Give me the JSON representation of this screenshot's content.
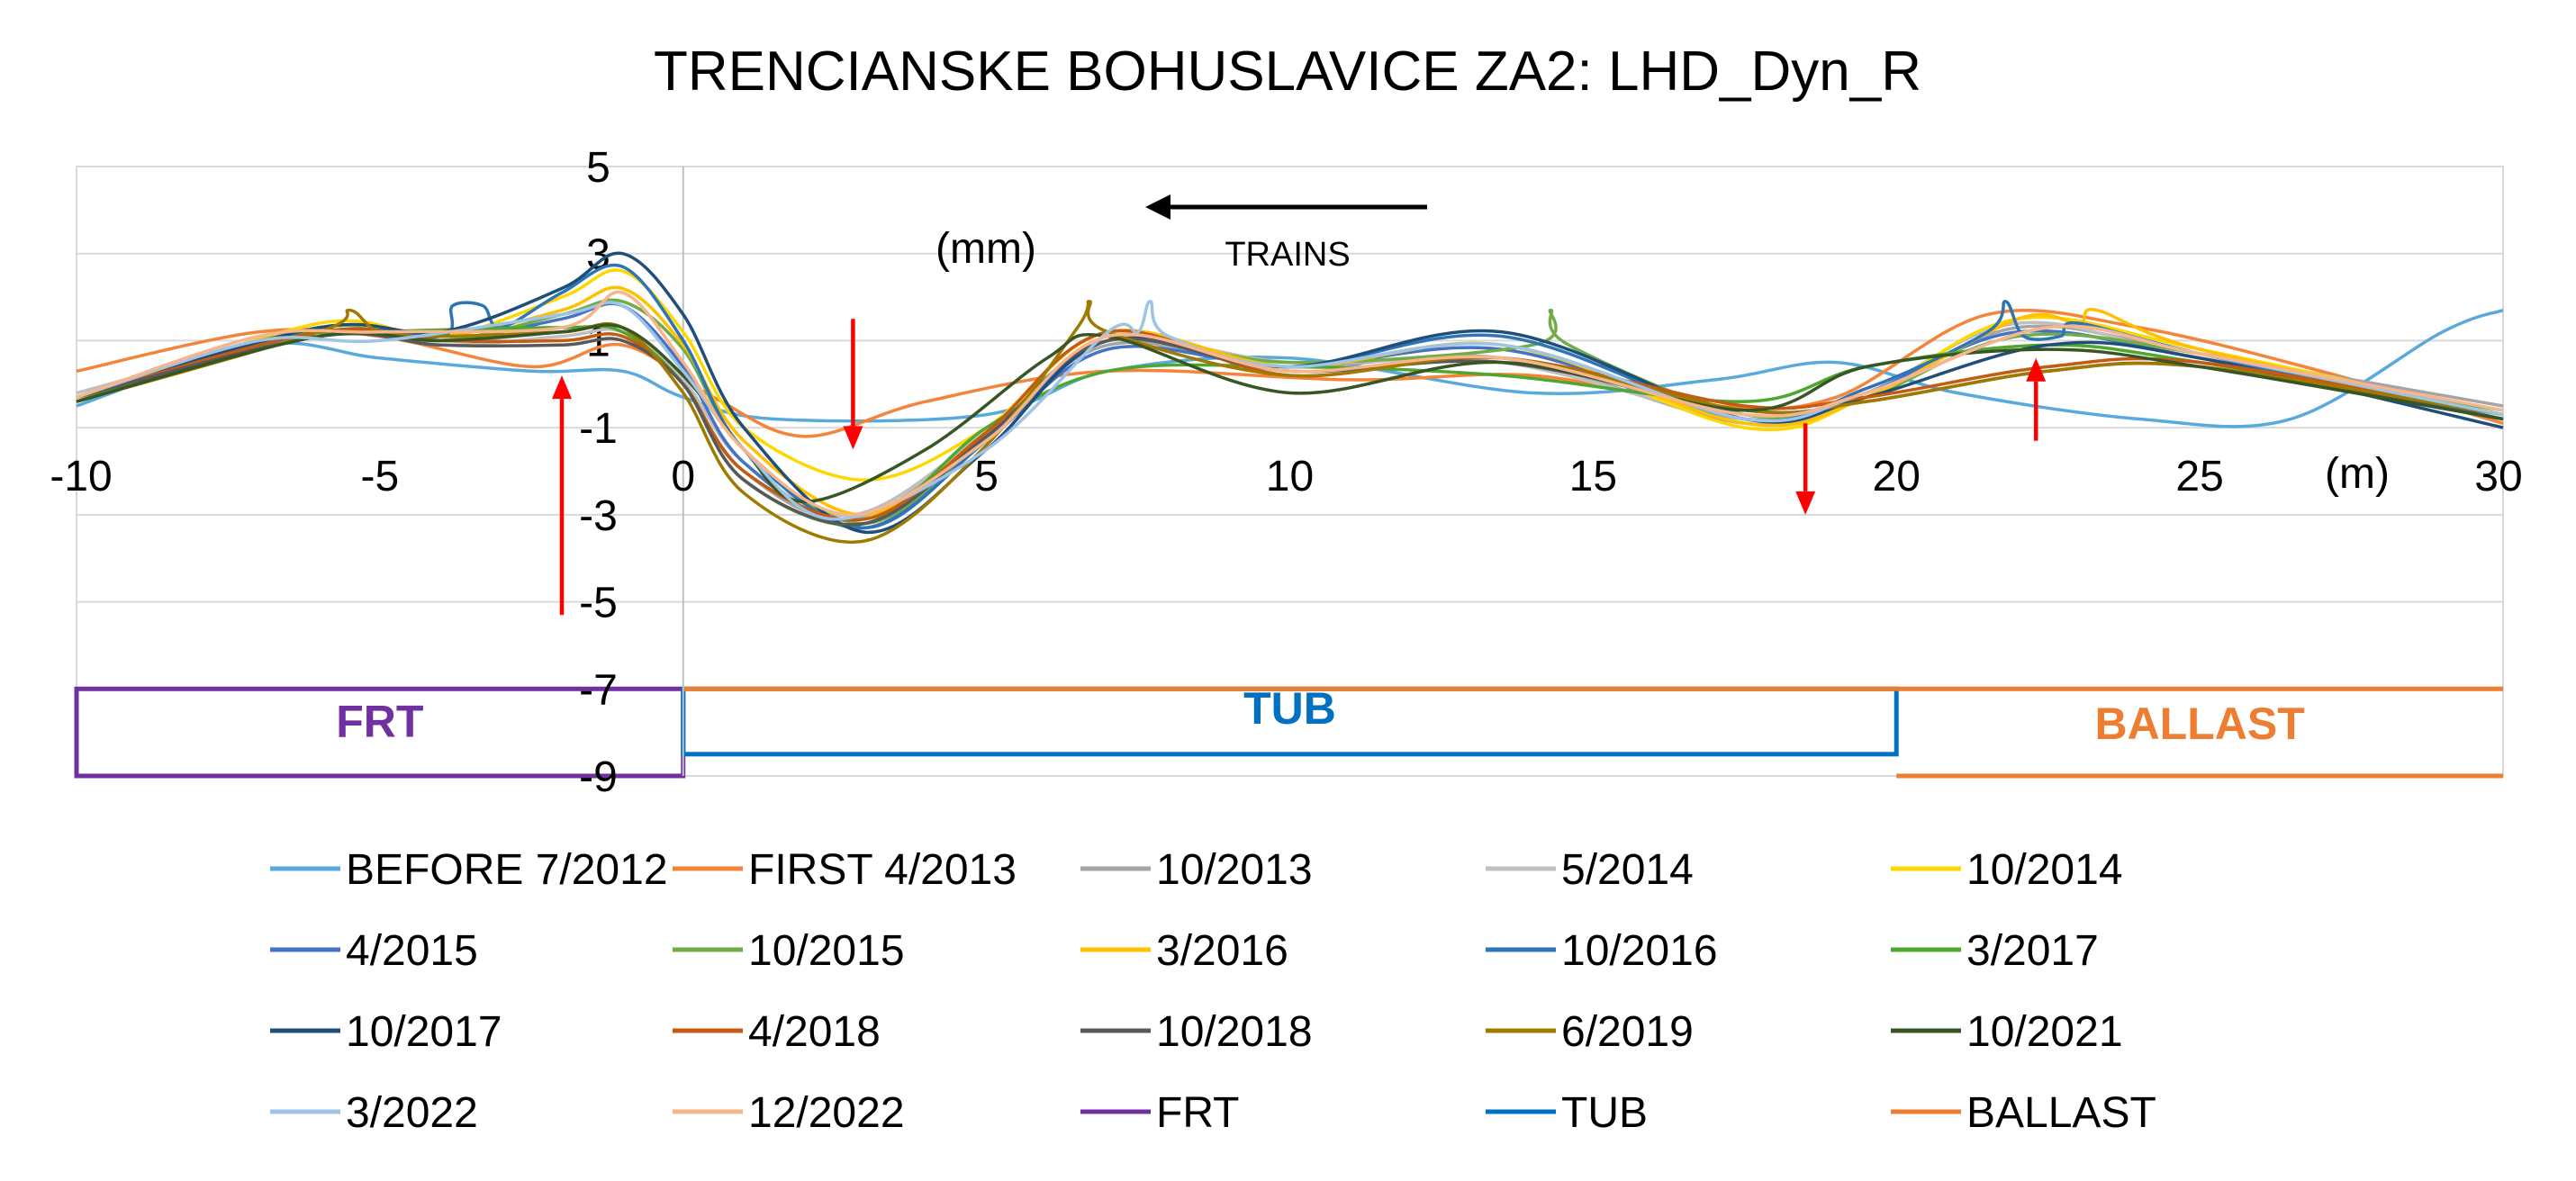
{
  "chart_data": {
    "type": "line",
    "title": "TRENCIANSKE BOHUSLAVICE  ZA2: LHD_Dyn_R",
    "ylabel": "(mm)",
    "xlabel": "(m)",
    "annotation": "TRAINS",
    "xlim": [
      -10,
      30
    ],
    "ylim": [
      -9,
      5
    ],
    "xticks": [
      -10,
      -5,
      0,
      5,
      10,
      15,
      20,
      25,
      30
    ],
    "yticks": [
      5,
      3,
      1,
      -1,
      -3,
      -5,
      -7,
      -9
    ],
    "grid": true,
    "legend_position": "bottom",
    "zones": [
      {
        "name": "FRT",
        "x0": -10,
        "x1": 0,
        "ylow": -9,
        "yhigh": -7,
        "color": "#7030A0"
      },
      {
        "name": "TUB",
        "x0": 0,
        "x1": 20,
        "ylow": -8.5,
        "yhigh": -7,
        "color": "#0070C0"
      },
      {
        "name": "BALLAST",
        "x0": 0,
        "x1": 30,
        "ylow": -9,
        "yhigh": -7,
        "color": "#ED7D31"
      }
    ],
    "markers": [
      {
        "x": -2,
        "y_from": -5.3,
        "y_to": 0.2,
        "direction": "up"
      },
      {
        "x": 2.8,
        "y_from": 1.5,
        "y_to": -1.5,
        "direction": "down"
      },
      {
        "x": 18.5,
        "y_from": -0.9,
        "y_to": -3,
        "direction": "down"
      },
      {
        "x": 22.3,
        "y_from": -1.3,
        "y_to": 0.6,
        "direction": "up"
      }
    ],
    "series": [
      {
        "name": "BEFORE 7/2012",
        "color": "#5AA9DD",
        "x": [
          -10,
          -7,
          -5,
          -2.5,
          -1,
          0,
          1.5,
          5,
          7,
          10,
          14,
          17,
          19,
          21,
          24,
          26.5,
          29,
          30
        ],
        "y": [
          -0.5,
          0.9,
          0.6,
          0.3,
          0.3,
          -0.3,
          -0.8,
          -0.7,
          0.3,
          0.6,
          -0.2,
          0.1,
          0.5,
          -0.2,
          -0.8,
          -0.8,
          1.2,
          1.7
        ]
      },
      {
        "name": "FIRST 4/2013",
        "color": "#F4843A",
        "x": [
          -10,
          -7,
          -5,
          -2.5,
          -1,
          0.5,
          2,
          4,
          7,
          11,
          14,
          17,
          19,
          21.5,
          24,
          27,
          30
        ],
        "y": [
          0.3,
          1.2,
          1.1,
          0.4,
          0.9,
          -0.3,
          -1.2,
          -0.4,
          0.3,
          0.1,
          0.2,
          -0.5,
          -0.3,
          1.6,
          1.3,
          0.3,
          -0.9
        ]
      },
      {
        "name": "10/2013",
        "color": "#A5A5A5",
        "x": [
          -10,
          -6,
          -4,
          -2,
          -1,
          0,
          1,
          2.8,
          5,
          7,
          10,
          13.5,
          17.5,
          19.5,
          22,
          25,
          30
        ],
        "y": [
          -0.3,
          1.3,
          1.0,
          1.2,
          1.3,
          0.0,
          -2.0,
          -3.1,
          -1.2,
          0.9,
          0.4,
          0.6,
          -0.9,
          -0.3,
          1.3,
          0.7,
          -0.5
        ]
      },
      {
        "name": "5/2014",
        "color": "#BFBFBF",
        "x": [
          -10,
          -6,
          -4,
          -2,
          -1,
          0,
          1,
          2.8,
          5,
          7,
          10,
          13.5,
          17.5,
          19.5,
          22,
          25,
          30
        ],
        "y": [
          -0.2,
          1.2,
          0.9,
          1.1,
          1.2,
          0.1,
          -1.8,
          -3.0,
          -1.1,
          1.0,
          0.5,
          0.5,
          -0.8,
          -0.2,
          1.4,
          0.6,
          -0.6
        ]
      },
      {
        "name": "10/2014",
        "color": "#FFD700",
        "x": [
          -10,
          -6,
          -4,
          -2,
          -1,
          0,
          1,
          3,
          5,
          7,
          10,
          13.5,
          17.5,
          19.5,
          22,
          25,
          30
        ],
        "y": [
          -0.4,
          1.4,
          1.1,
          2.0,
          2.6,
          1.2,
          -1.0,
          -2.2,
          -1.0,
          1.2,
          0.4,
          0.9,
          -1.0,
          -0.3,
          1.5,
          0.8,
          -0.7
        ]
      },
      {
        "name": "4/2015",
        "color": "#4472C4",
        "x": [
          -10,
          -6,
          -4,
          -2,
          -1,
          0,
          1,
          3,
          5,
          7,
          10,
          13.5,
          17.5,
          19.5,
          22,
          25,
          30
        ],
        "y": [
          -0.3,
          1.2,
          1.0,
          1.5,
          1.8,
          0.4,
          -1.8,
          -3.3,
          -1.3,
          0.8,
          0.4,
          0.8,
          -0.8,
          -0.2,
          1.2,
          0.6,
          -0.7
        ]
      },
      {
        "name": "10/2015",
        "color": "#70AD47",
        "x": [
          -10,
          -6,
          -4,
          -2,
          -1,
          0,
          1,
          3,
          5,
          7,
          10,
          14,
          14.3,
          14.6,
          17.5,
          19.5,
          22,
          25,
          30
        ],
        "y": [
          -0.3,
          1.3,
          1.0,
          1.6,
          1.9,
          0.8,
          -1.5,
          -3.2,
          -1.2,
          1.0,
          0.5,
          0.9,
          1.7,
          0.9,
          -0.7,
          -0.3,
          1.1,
          0.7,
          -0.7
        ]
      },
      {
        "name": "3/2016",
        "color": "#FFC000",
        "x": [
          -10,
          -6,
          -4,
          -2,
          -1,
          0,
          1,
          3,
          5,
          7,
          10,
          13.5,
          17.5,
          19.5,
          22,
          23,
          23.3,
          25,
          30
        ],
        "y": [
          -0.3,
          1.3,
          1.1,
          1.7,
          2.2,
          0.9,
          -1.3,
          -3.0,
          -1.1,
          1.2,
          0.4,
          0.9,
          -0.9,
          -0.3,
          1.5,
          1.4,
          1.7,
          0.8,
          -0.7
        ]
      },
      {
        "name": "10/2016",
        "color": "#2E75B6",
        "x": [
          -10,
          -6,
          -4,
          -3.8,
          -3.3,
          -3,
          -2,
          -1,
          0,
          1,
          3,
          5,
          7,
          10,
          13.5,
          17.5,
          19.5,
          21.5,
          21.8,
          22.1,
          22.7,
          23,
          25,
          30
        ],
        "y": [
          -0.3,
          1.2,
          1.1,
          1.8,
          1.8,
          1.3,
          2.1,
          2.7,
          1.0,
          -1.5,
          -3.3,
          -1.3,
          1.0,
          0.4,
          1.1,
          -0.8,
          -0.1,
          1.2,
          1.9,
          1.1,
          1.1,
          1.4,
          0.7,
          -0.8
        ]
      },
      {
        "name": "3/2017",
        "color": "#4EA72E",
        "x": [
          -10,
          -7,
          -5,
          -2,
          -1,
          0,
          1,
          3,
          5,
          7,
          10,
          13.5,
          17.5,
          19.5,
          22.5,
          25,
          30
        ],
        "y": [
          -0.4,
          1.0,
          1.2,
          1.3,
          1.2,
          0.0,
          -2.2,
          -3.2,
          -1.0,
          0.3,
          0.4,
          0.2,
          -0.4,
          0.4,
          0.9,
          0.5,
          -0.6
        ]
      },
      {
        "name": "10/2017",
        "color": "#1F4E79",
        "x": [
          -10,
          -6,
          -4,
          -2,
          -1,
          0,
          1,
          3,
          5,
          7,
          10,
          13.5,
          17.5,
          19.5,
          22.5,
          25,
          30
        ],
        "y": [
          -0.3,
          1.3,
          1.2,
          2.2,
          3.0,
          1.6,
          -1.0,
          -3.4,
          -1.5,
          1.0,
          0.4,
          1.2,
          -0.8,
          -0.3,
          0.9,
          0.6,
          -1.0
        ]
      },
      {
        "name": "4/2018",
        "color": "#C55A11",
        "x": [
          -10,
          -6,
          -4,
          -2,
          -1,
          0,
          1,
          3,
          5,
          7,
          10,
          13.5,
          17.5,
          19.5,
          22.5,
          25,
          30
        ],
        "y": [
          -0.3,
          1.2,
          1.0,
          1.0,
          1.1,
          0.0,
          -2.0,
          -3.1,
          -1.1,
          1.2,
          0.2,
          0.6,
          -0.5,
          -0.3,
          0.4,
          0.5,
          -0.7
        ]
      },
      {
        "name": "10/2018",
        "color": "#595959",
        "x": [
          -10,
          -6,
          -4,
          -2,
          -1,
          0,
          1,
          3,
          5,
          7,
          10,
          13.5,
          17.5,
          19.5,
          22.5,
          25,
          30
        ],
        "y": [
          -0.3,
          1.1,
          0.9,
          0.9,
          1.0,
          0.0,
          -2.2,
          -3.2,
          -1.2,
          1.0,
          0.3,
          0.5,
          -0.6,
          -0.4,
          0.3,
          0.4,
          -0.8
        ]
      },
      {
        "name": "6/2019",
        "color": "#A07A00",
        "x": [
          -10,
          -6,
          -5.5,
          -5,
          -4,
          -2,
          -1,
          0,
          1,
          3,
          5,
          6.5,
          6.7,
          7,
          10,
          13.5,
          17.5,
          19.5,
          22.5,
          25,
          30
        ],
        "y": [
          -0.4,
          1.2,
          1.7,
          1.2,
          1.1,
          1.2,
          1.3,
          -0.2,
          -2.5,
          -3.6,
          -1.4,
          1.3,
          1.9,
          1.2,
          0.2,
          0.6,
          -0.6,
          -0.4,
          0.3,
          0.4,
          -0.7
        ]
      },
      {
        "name": "10/2021",
        "color": "#375623",
        "x": [
          -10,
          -6,
          -4,
          -2,
          -1,
          0,
          1,
          2,
          4,
          6,
          7,
          10,
          13.5,
          17.5,
          19.5,
          22.5,
          25,
          30
        ],
        "y": [
          -0.4,
          1.1,
          1.0,
          1.2,
          1.3,
          0.2,
          -1.5,
          -2.7,
          -1.5,
          0.6,
          1.1,
          -0.2,
          0.5,
          -0.6,
          0.4,
          0.8,
          0.4,
          -0.8
        ]
      },
      {
        "name": "3/2022",
        "color": "#9DC3E6",
        "x": [
          -10,
          -7,
          -5,
          -2,
          -1,
          0,
          1,
          2.5,
          5,
          7,
          7.5,
          7.7,
          8,
          10,
          13.5,
          17.5,
          19.5,
          22.5,
          25,
          30
        ],
        "y": [
          -0.3,
          1.0,
          1.0,
          1.6,
          1.8,
          0.3,
          -1.5,
          -3.1,
          -1.5,
          1.2,
          1.2,
          1.9,
          1.1,
          0.4,
          0.9,
          -0.8,
          -0.2,
          1.3,
          0.7,
          -0.7
        ]
      },
      {
        "name": "12/2022",
        "color": "#F8B48A",
        "x": [
          -10,
          -7,
          -5,
          -2,
          -1,
          0,
          1,
          2.8,
          5,
          7,
          10,
          13.5,
          17.5,
          19.5,
          22.5,
          25,
          30
        ],
        "y": [
          -0.3,
          1.1,
          1.2,
          1.3,
          2.1,
          0.5,
          -1.5,
          -3.0,
          -1.3,
          1.1,
          0.3,
          0.6,
          -0.7,
          -0.2,
          1.3,
          0.7,
          -0.6
        ]
      }
    ],
    "legend": [
      {
        "name": "BEFORE 7/2012",
        "color": "#5AA9DD"
      },
      {
        "name": "FIRST 4/2013",
        "color": "#F4843A"
      },
      {
        "name": "10/2013",
        "color": "#A5A5A5"
      },
      {
        "name": "5/2014",
        "color": "#BFBFBF"
      },
      {
        "name": "10/2014",
        "color": "#FFD700"
      },
      {
        "name": "4/2015",
        "color": "#4472C4"
      },
      {
        "name": "10/2015",
        "color": "#70AD47"
      },
      {
        "name": "3/2016",
        "color": "#FFC000"
      },
      {
        "name": "10/2016",
        "color": "#2E75B6"
      },
      {
        "name": "3/2017",
        "color": "#4EA72E"
      },
      {
        "name": "10/2017",
        "color": "#1F4E79"
      },
      {
        "name": "4/2018",
        "color": "#C55A11"
      },
      {
        "name": "10/2018",
        "color": "#595959"
      },
      {
        "name": "6/2019",
        "color": "#A07A00"
      },
      {
        "name": "10/2021",
        "color": "#375623"
      },
      {
        "name": "3/2022",
        "color": "#9DC3E6"
      },
      {
        "name": "12/2022",
        "color": "#F8B48A"
      },
      {
        "name": "FRT",
        "color": "#7030A0"
      },
      {
        "name": "TUB",
        "color": "#0070C0"
      },
      {
        "name": "BALLAST",
        "color": "#ED7D31"
      }
    ]
  }
}
